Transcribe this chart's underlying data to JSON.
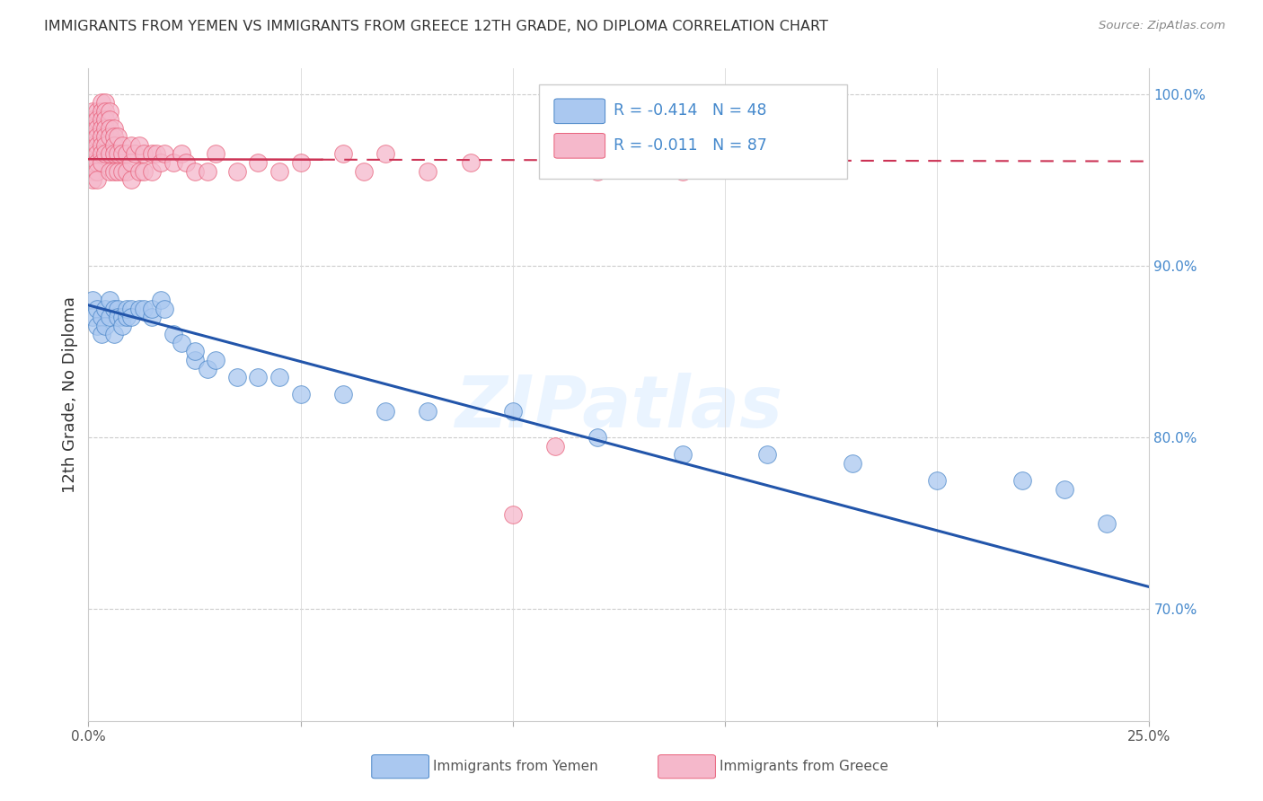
{
  "title": "IMMIGRANTS FROM YEMEN VS IMMIGRANTS FROM GREECE 12TH GRADE, NO DIPLOMA CORRELATION CHART",
  "source": "Source: ZipAtlas.com",
  "ylabel_label": "12th Grade, No Diploma",
  "xmin": 0.0,
  "xmax": 0.25,
  "ymin": 0.635,
  "ymax": 1.015,
  "legend_blue_R": "-0.414",
  "legend_blue_N": "48",
  "legend_pink_R": "-0.011",
  "legend_pink_N": "87",
  "blue_fill": "#aac8f0",
  "pink_fill": "#f5b8cb",
  "blue_edge": "#4a86c8",
  "pink_edge": "#e8607a",
  "blue_line": "#2255aa",
  "pink_line": "#cc3355",
  "watermark": "ZIPatlas",
  "background_color": "#ffffff",
  "yemen_x": [
    0.001,
    0.001,
    0.002,
    0.002,
    0.003,
    0.003,
    0.004,
    0.004,
    0.005,
    0.005,
    0.006,
    0.006,
    0.007,
    0.007,
    0.008,
    0.008,
    0.009,
    0.009,
    0.01,
    0.01,
    0.012,
    0.013,
    0.015,
    0.015,
    0.017,
    0.018,
    0.02,
    0.022,
    0.025,
    0.025,
    0.028,
    0.03,
    0.035,
    0.04,
    0.045,
    0.05,
    0.06,
    0.07,
    0.08,
    0.1,
    0.12,
    0.14,
    0.16,
    0.18,
    0.2,
    0.22,
    0.23,
    0.24
  ],
  "yemen_y": [
    0.88,
    0.87,
    0.875,
    0.865,
    0.87,
    0.86,
    0.875,
    0.865,
    0.87,
    0.88,
    0.875,
    0.86,
    0.875,
    0.87,
    0.87,
    0.865,
    0.87,
    0.875,
    0.875,
    0.87,
    0.875,
    0.875,
    0.87,
    0.875,
    0.88,
    0.875,
    0.86,
    0.855,
    0.845,
    0.85,
    0.84,
    0.845,
    0.835,
    0.835,
    0.835,
    0.825,
    0.825,
    0.815,
    0.815,
    0.815,
    0.8,
    0.79,
    0.79,
    0.785,
    0.775,
    0.775,
    0.77,
    0.75
  ],
  "greece_x": [
    0.001,
    0.001,
    0.001,
    0.001,
    0.001,
    0.001,
    0.001,
    0.001,
    0.001,
    0.002,
    0.002,
    0.002,
    0.002,
    0.002,
    0.002,
    0.002,
    0.002,
    0.002,
    0.003,
    0.003,
    0.003,
    0.003,
    0.003,
    0.003,
    0.003,
    0.003,
    0.004,
    0.004,
    0.004,
    0.004,
    0.004,
    0.004,
    0.004,
    0.005,
    0.005,
    0.005,
    0.005,
    0.005,
    0.005,
    0.006,
    0.006,
    0.006,
    0.006,
    0.006,
    0.007,
    0.007,
    0.007,
    0.008,
    0.008,
    0.008,
    0.009,
    0.009,
    0.01,
    0.01,
    0.01,
    0.011,
    0.012,
    0.012,
    0.013,
    0.013,
    0.015,
    0.015,
    0.016,
    0.017,
    0.018,
    0.02,
    0.022,
    0.023,
    0.025,
    0.028,
    0.03,
    0.035,
    0.04,
    0.045,
    0.05,
    0.06,
    0.065,
    0.07,
    0.08,
    0.09,
    0.1,
    0.11,
    0.115,
    0.12,
    0.13,
    0.14,
    0.15
  ],
  "greece_y": [
    0.99,
    0.985,
    0.98,
    0.975,
    0.97,
    0.965,
    0.96,
    0.955,
    0.95,
    0.99,
    0.985,
    0.98,
    0.975,
    0.97,
    0.965,
    0.96,
    0.955,
    0.95,
    0.995,
    0.99,
    0.985,
    0.98,
    0.975,
    0.97,
    0.965,
    0.96,
    0.995,
    0.99,
    0.985,
    0.98,
    0.975,
    0.97,
    0.965,
    0.99,
    0.985,
    0.98,
    0.975,
    0.965,
    0.955,
    0.98,
    0.975,
    0.97,
    0.965,
    0.955,
    0.975,
    0.965,
    0.955,
    0.97,
    0.965,
    0.955,
    0.965,
    0.955,
    0.97,
    0.96,
    0.95,
    0.965,
    0.97,
    0.955,
    0.965,
    0.955,
    0.965,
    0.955,
    0.965,
    0.96,
    0.965,
    0.96,
    0.965,
    0.96,
    0.955,
    0.955,
    0.965,
    0.955,
    0.96,
    0.955,
    0.96,
    0.965,
    0.955,
    0.965,
    0.955,
    0.96,
    0.755,
    0.795,
    0.96,
    0.955,
    0.96,
    0.955,
    0.96
  ]
}
